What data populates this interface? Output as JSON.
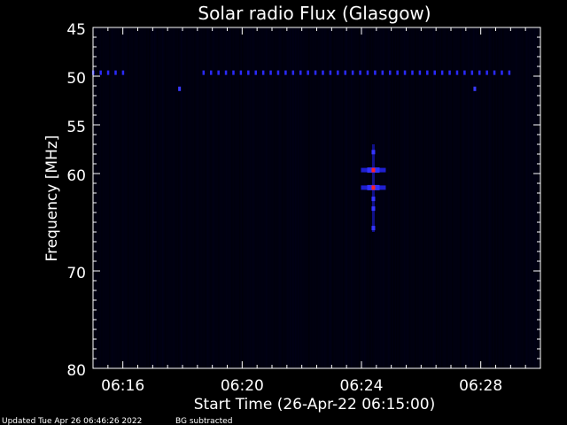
{
  "chart_data": {
    "type": "heatmap",
    "title": "Solar radio Flux (Glasgow)",
    "xlabel": "Start Time (26-Apr-22 06:15:00)",
    "ylabel": "Frequency [MHz]",
    "footer_left": "Updated Tue Apr 26 06:46:26 2022",
    "footer_right": "BG subtracted",
    "x_range_minutes_after_0615": [
      0,
      15
    ],
    "y_range_mhz": [
      45,
      80
    ],
    "y_reversed": true,
    "x_ticks": [
      {
        "label": "06:16",
        "minute": 1
      },
      {
        "label": "06:20",
        "minute": 5
      },
      {
        "label": "06:24",
        "minute": 9
      },
      {
        "label": "06:28",
        "minute": 13
      }
    ],
    "y_ticks": [
      45,
      50,
      55,
      60,
      70,
      80
    ],
    "background_color": "#000010",
    "features": {
      "band_50mhz": {
        "frequency_mhz": 49.6,
        "color": "#2a2aff",
        "segments_minutes": [
          [
            0,
            1.1
          ],
          [
            3.7,
            14.0
          ]
        ]
      },
      "burst": {
        "minute": 9.4,
        "peaks": [
          {
            "frequency_mhz": 59.6,
            "intensity": "high"
          },
          {
            "frequency_mhz": 61.4,
            "intensity": "high"
          },
          {
            "frequency_mhz": 57.8,
            "intensity": "low"
          },
          {
            "frequency_mhz": 62.6,
            "intensity": "low"
          },
          {
            "frequency_mhz": 63.6,
            "intensity": "low"
          },
          {
            "frequency_mhz": 65.6,
            "intensity": "low"
          }
        ]
      },
      "isolated_marks": [
        {
          "minute": 2.9,
          "frequency_mhz": 51.3
        },
        {
          "minute": 12.8,
          "frequency_mhz": 51.3
        }
      ]
    }
  }
}
